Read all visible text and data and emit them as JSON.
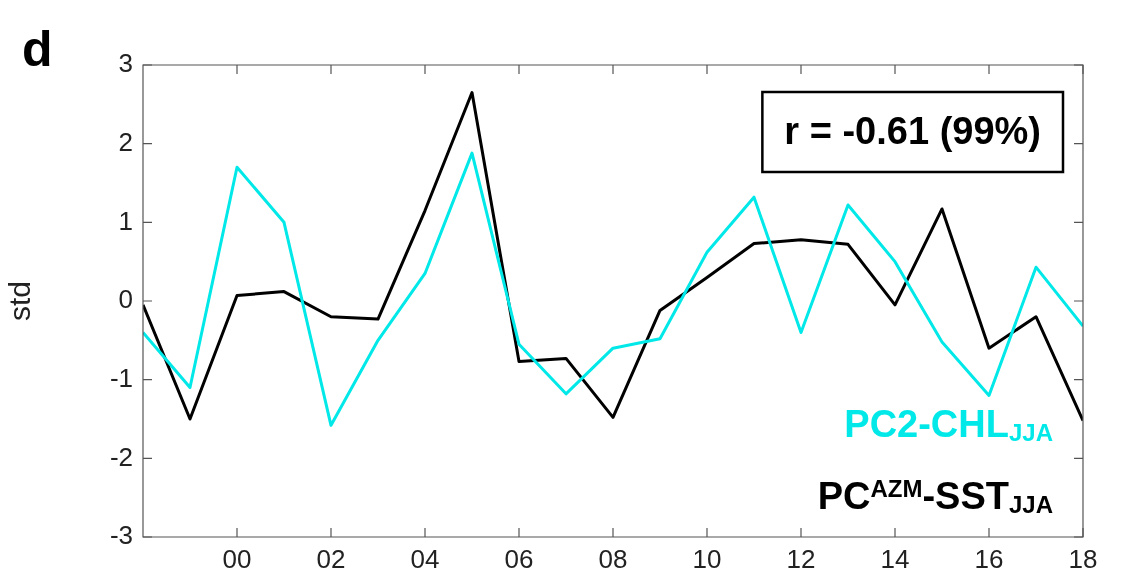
{
  "chart_data": {
    "type": "line",
    "title": "d",
    "ylabel": "std",
    "x": [
      1998,
      1999,
      2000,
      2001,
      2002,
      2003,
      2004,
      2005,
      2006,
      2007,
      2008,
      2009,
      2010,
      2011,
      2012,
      2013,
      2014,
      2015,
      2016,
      2017,
      2018
    ],
    "series": [
      {
        "name": "PC2-CHL$_{JJA}$",
        "color": "#00e8e8",
        "values": [
          -0.4,
          -1.1,
          1.7,
          1.0,
          -1.58,
          -0.5,
          0.35,
          1.88,
          -0.55,
          -1.18,
          -0.6,
          -0.48,
          0.62,
          1.32,
          -0.4,
          1.22,
          0.5,
          -0.52,
          -1.2,
          0.43,
          -0.32
        ]
      },
      {
        "name": "PC$^{AZM}$-SST$_{JJA}$",
        "color": "#000000",
        "values": [
          -0.05,
          -1.5,
          0.07,
          0.12,
          -0.2,
          -0.23,
          1.15,
          2.65,
          -0.77,
          -0.73,
          -1.48,
          -0.12,
          0.3,
          0.73,
          0.78,
          0.72,
          -0.05,
          1.17,
          -0.6,
          -0.2,
          -1.52
        ]
      }
    ],
    "xlim": [
      1998,
      2018
    ],
    "xticks": [
      {
        "value": 2000,
        "label": "00"
      },
      {
        "value": 2002,
        "label": "02"
      },
      {
        "value": 2004,
        "label": "04"
      },
      {
        "value": 2006,
        "label": "06"
      },
      {
        "value": 2008,
        "label": "08"
      },
      {
        "value": 2010,
        "label": "10"
      },
      {
        "value": 2012,
        "label": "12"
      },
      {
        "value": 2014,
        "label": "14"
      },
      {
        "value": 2016,
        "label": "16"
      },
      {
        "value": 2018,
        "label": "18"
      }
    ],
    "ylim": [
      -3,
      3
    ],
    "yticks": [
      -3,
      -2,
      -1,
      0,
      1,
      2,
      3
    ],
    "annotations": [
      "r = -0.61 (99%)"
    ],
    "legend": "bottom right",
    "grid": false,
    "marker": "none",
    "line_style": "solid"
  }
}
